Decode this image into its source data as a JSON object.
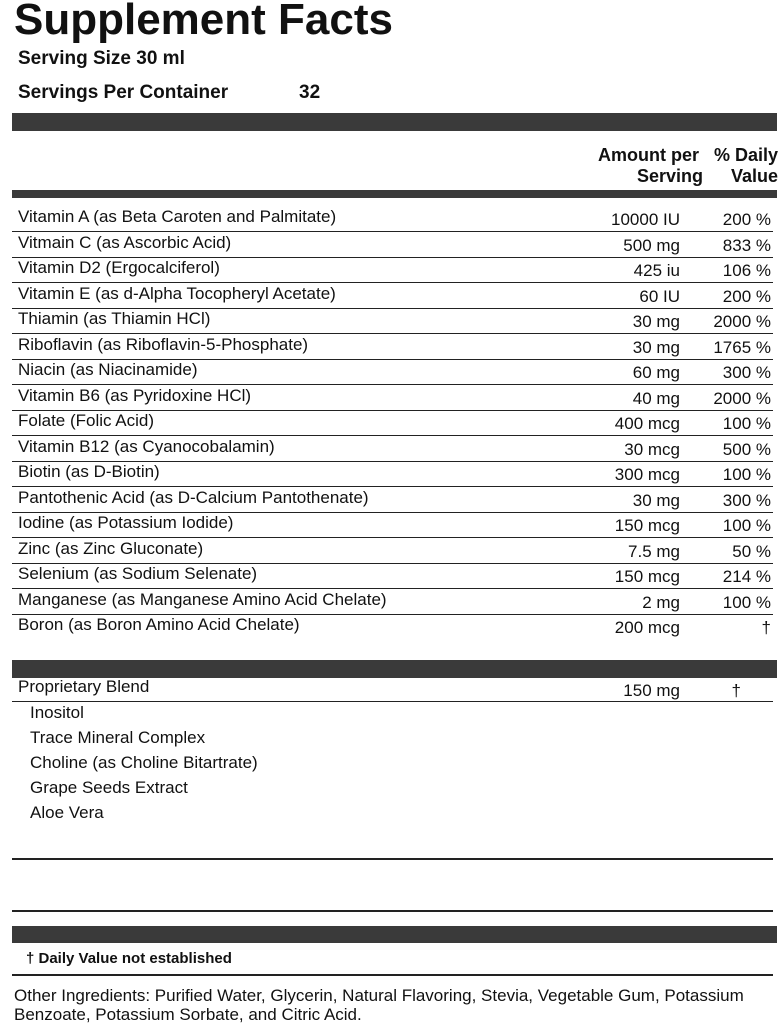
{
  "title": "Supplement Facts",
  "serving_size": "Serving Size 30 ml",
  "servings_per_container": {
    "label": "Servings Per Container",
    "value": "32"
  },
  "columns": {
    "amount": [
      "Amount per",
      "Serving"
    ],
    "daily_value": [
      "% Daily",
      "Value"
    ]
  },
  "rows": [
    [
      "Vitamin A (as Beta Caroten and Palmitate)",
      "10000 IU",
      "200 %"
    ],
    [
      "Vitmain C (as Ascorbic Acid)",
      "500 mg",
      "833 %"
    ],
    [
      "Vitamin D2 (Ergocalciferol)",
      "425 iu",
      "106 %"
    ],
    [
      "Vitamin E (as d-Alpha Tocopheryl Acetate)",
      "60 IU",
      "200 %"
    ],
    [
      "Thiamin (as Thiamin HCl)",
      "30 mg",
      "2000 %"
    ],
    [
      "Riboflavin (as Riboflavin-5-Phosphate)",
      "30 mg",
      "1765 %"
    ],
    [
      "Niacin (as Niacinamide)",
      "60 mg",
      "300 %"
    ],
    [
      "Vitamin B6 (as Pyridoxine HCl)",
      "40 mg",
      "2000 %"
    ],
    [
      "Folate (Folic Acid)",
      "400 mcg",
      "100 %"
    ],
    [
      "Vitamin B12 (as Cyanocobalamin)",
      "30 mcg",
      "500 %"
    ],
    [
      "Biotin (as D-Biotin)",
      "300 mcg",
      "100 %"
    ],
    [
      "Pantothenic Acid (as D-Calcium Pantothenate)",
      "30 mg",
      "300 %"
    ],
    [
      "Iodine (as Potassium Iodide)",
      "150 mcg",
      "100 %"
    ],
    [
      "Zinc (as Zinc Gluconate)",
      "7.5 mg",
      "50 %"
    ],
    [
      "Selenium (as Sodium Selenate)",
      "150 mcg",
      "214 %"
    ],
    [
      "Manganese (as Manganese Amino Acid Chelate)",
      "2 mg",
      "100 %"
    ],
    [
      "Boron (as Boron Amino Acid Chelate)",
      "200 mcg",
      "†"
    ]
  ],
  "blend": {
    "name": "Proprietary Blend",
    "amount": "150 mg",
    "daily_value": "†",
    "items": [
      "Inositol",
      "Trace Mineral Complex",
      "Choline (as Choline Bitartrate)",
      "Grape Seeds Extract",
      "Aloe Vera"
    ]
  },
  "footnote": "† Daily Value not established",
  "other_ingredients": "Other Ingredients: Purified Water, Glycerin, Natural Flavoring, Stevia, Vegetable Gum, Potassium Benzoate, Potassium Sorbate, and Citric Acid."
}
